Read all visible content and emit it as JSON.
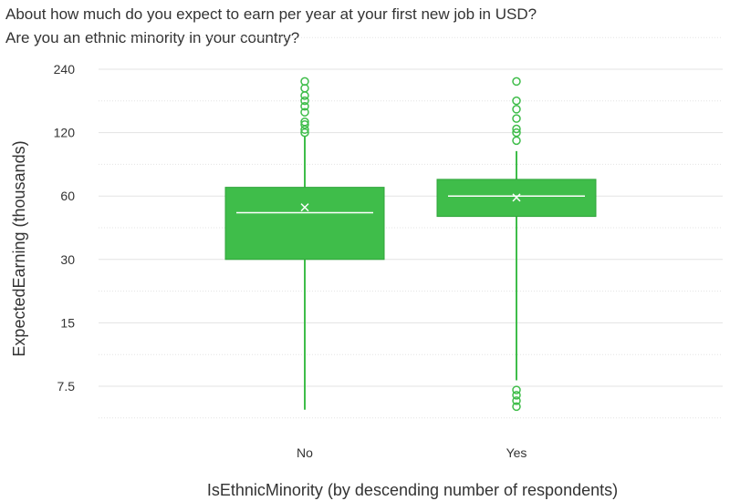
{
  "title": "About how much do you expect to earn per year at your first new job in USD?",
  "subtitle": "Are you an ethnic minority in your country?",
  "chart_data": {
    "type": "box",
    "xlabel": "IsEthnicMinority (by descending number of respondents)",
    "ylabel": "ExpectedEarning (thousands)",
    "y_scale": "log",
    "ylim": [
      5.5,
      240
    ],
    "yticks": [
      7.5,
      15,
      30,
      60,
      120,
      240
    ],
    "ytick_labels": [
      "7.5",
      "15",
      "30",
      "60",
      "120",
      "240"
    ],
    "grid": true,
    "color": "#3fbd4a",
    "categories": [
      "No",
      "Yes"
    ],
    "boxes": [
      {
        "category": "No",
        "whisker_low": 5.8,
        "q1": 30,
        "median": 50,
        "mean": 53,
        "q3": 66,
        "whisker_high": 115,
        "outliers": [
          120,
          124,
          131,
          135,
          150,
          160,
          170,
          180,
          195,
          210
        ]
      },
      {
        "category": "Yes",
        "whisker_low": 8.0,
        "q1": 48,
        "median": 60,
        "mean": 59,
        "q3": 72,
        "whisker_high": 98,
        "outliers": [
          6.0,
          6.4,
          6.8,
          7.2,
          110,
          120,
          125,
          140,
          155,
          170,
          210
        ]
      }
    ]
  }
}
